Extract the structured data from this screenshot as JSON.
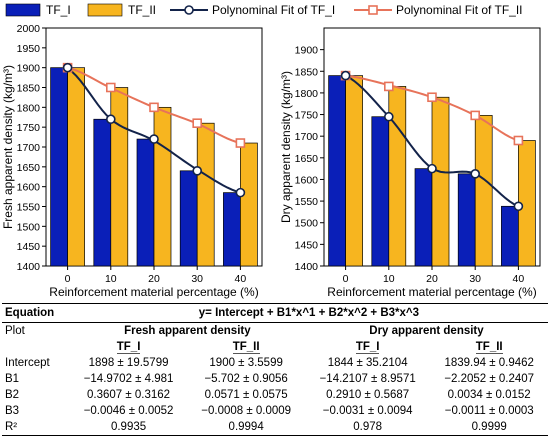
{
  "colors": {
    "tf1_bar": "#0a1fb8",
    "tf2_bar": "#f7b51f",
    "tf1_fit": "#13234a",
    "tf2_fit": "#e7735a"
  },
  "legend": {
    "items": [
      "TF_I",
      "TF_II",
      "Polynominal Fit of TF_I",
      "Polynominal Fit of TF_II"
    ]
  },
  "chart_data": [
    {
      "type": "bar",
      "xlabel": "Reinforcement material percentage (%)",
      "ylabel": "Fresh apparent density (kg/m³)",
      "categories": [
        "0",
        "10",
        "20",
        "30",
        "40"
      ],
      "x": [
        0,
        10,
        20,
        30,
        40
      ],
      "ylim": [
        1400,
        2000
      ],
      "yticks": [
        1400,
        1450,
        1500,
        1550,
        1600,
        1650,
        1700,
        1750,
        1800,
        1850,
        1900,
        1950,
        2000
      ],
      "series": [
        {
          "name": "TF_I",
          "values": [
            1900,
            1770,
            1720,
            1640,
            1585
          ]
        },
        {
          "name": "TF_II",
          "values": [
            1900,
            1850,
            1800,
            1760,
            1710
          ]
        }
      ],
      "fits": [
        {
          "name": "Polynominal Fit of TF_I",
          "values": [
            1898,
            1770,
            1716,
            1643,
            1585
          ]
        },
        {
          "name": "Polynominal Fit of TF_II",
          "values": [
            1900,
            1849,
            1800,
            1759,
            1710
          ]
        }
      ]
    },
    {
      "type": "bar",
      "xlabel": "Reinforcement material percentage (%)",
      "ylabel": "Dry apparent density (kg/m³)",
      "categories": [
        "0",
        "10",
        "20",
        "30",
        "40"
      ],
      "x": [
        0,
        10,
        20,
        30,
        40
      ],
      "ylim": [
        1400,
        1950
      ],
      "yticks": [
        1400,
        1450,
        1500,
        1550,
        1600,
        1650,
        1700,
        1750,
        1800,
        1850,
        1900
      ],
      "series": [
        {
          "name": "TF_I",
          "values": [
            1840,
            1745,
            1625,
            1613,
            1538
          ]
        },
        {
          "name": "TF_II",
          "values": [
            1840,
            1815,
            1790,
            1748,
            1690
          ]
        }
      ],
      "fits": [
        {
          "name": "Polynominal Fit of TF_I",
          "values": [
            1840,
            1745,
            1626,
            1613,
            1538
          ]
        },
        {
          "name": "Polynominal Fit of TF_II",
          "values": [
            1840,
            1818,
            1790,
            1748,
            1690
          ]
        }
      ]
    }
  ],
  "table": {
    "equation_label": "Equation",
    "equation": "y= Intercept + B1*x^1 + B2*x^2 + B3*x^3",
    "plot_label": "Plot",
    "group1": "Fresh apparent density",
    "group2": "Dry apparent density",
    "sub": [
      "TF_I",
      "TF_II",
      "TF_I",
      "TF_II"
    ],
    "rows": [
      {
        "label": "Intercept",
        "cells": [
          "1898 ± 19.5799",
          "1900 ± 3.5599",
          "1844 ± 35.2104",
          "1839.94 ± 0.9462"
        ]
      },
      {
        "label": "B1",
        "cells": [
          "−14.9702 ± 4.981",
          "−5.702 ± 0.9056",
          "−14.2107 ± 8.9571",
          "−2.2052 ± 0.2407"
        ]
      },
      {
        "label": "B2",
        "cells": [
          "0.3607 ± 0.3162",
          "0.0571 ± 0.0575",
          "0.2910 ± 0.5687",
          "0.0034 ± 0.0152"
        ]
      },
      {
        "label": "B3",
        "cells": [
          "−0.0046 ± 0.0052",
          "−0.0008 ± 0.0009",
          "−0.0031 ± 0.0094",
          "−0.0011 ± 0.0003"
        ]
      },
      {
        "label": "R²",
        "cells": [
          "0.9935",
          "0.9994",
          "0.978",
          "0.9999"
        ]
      }
    ]
  }
}
